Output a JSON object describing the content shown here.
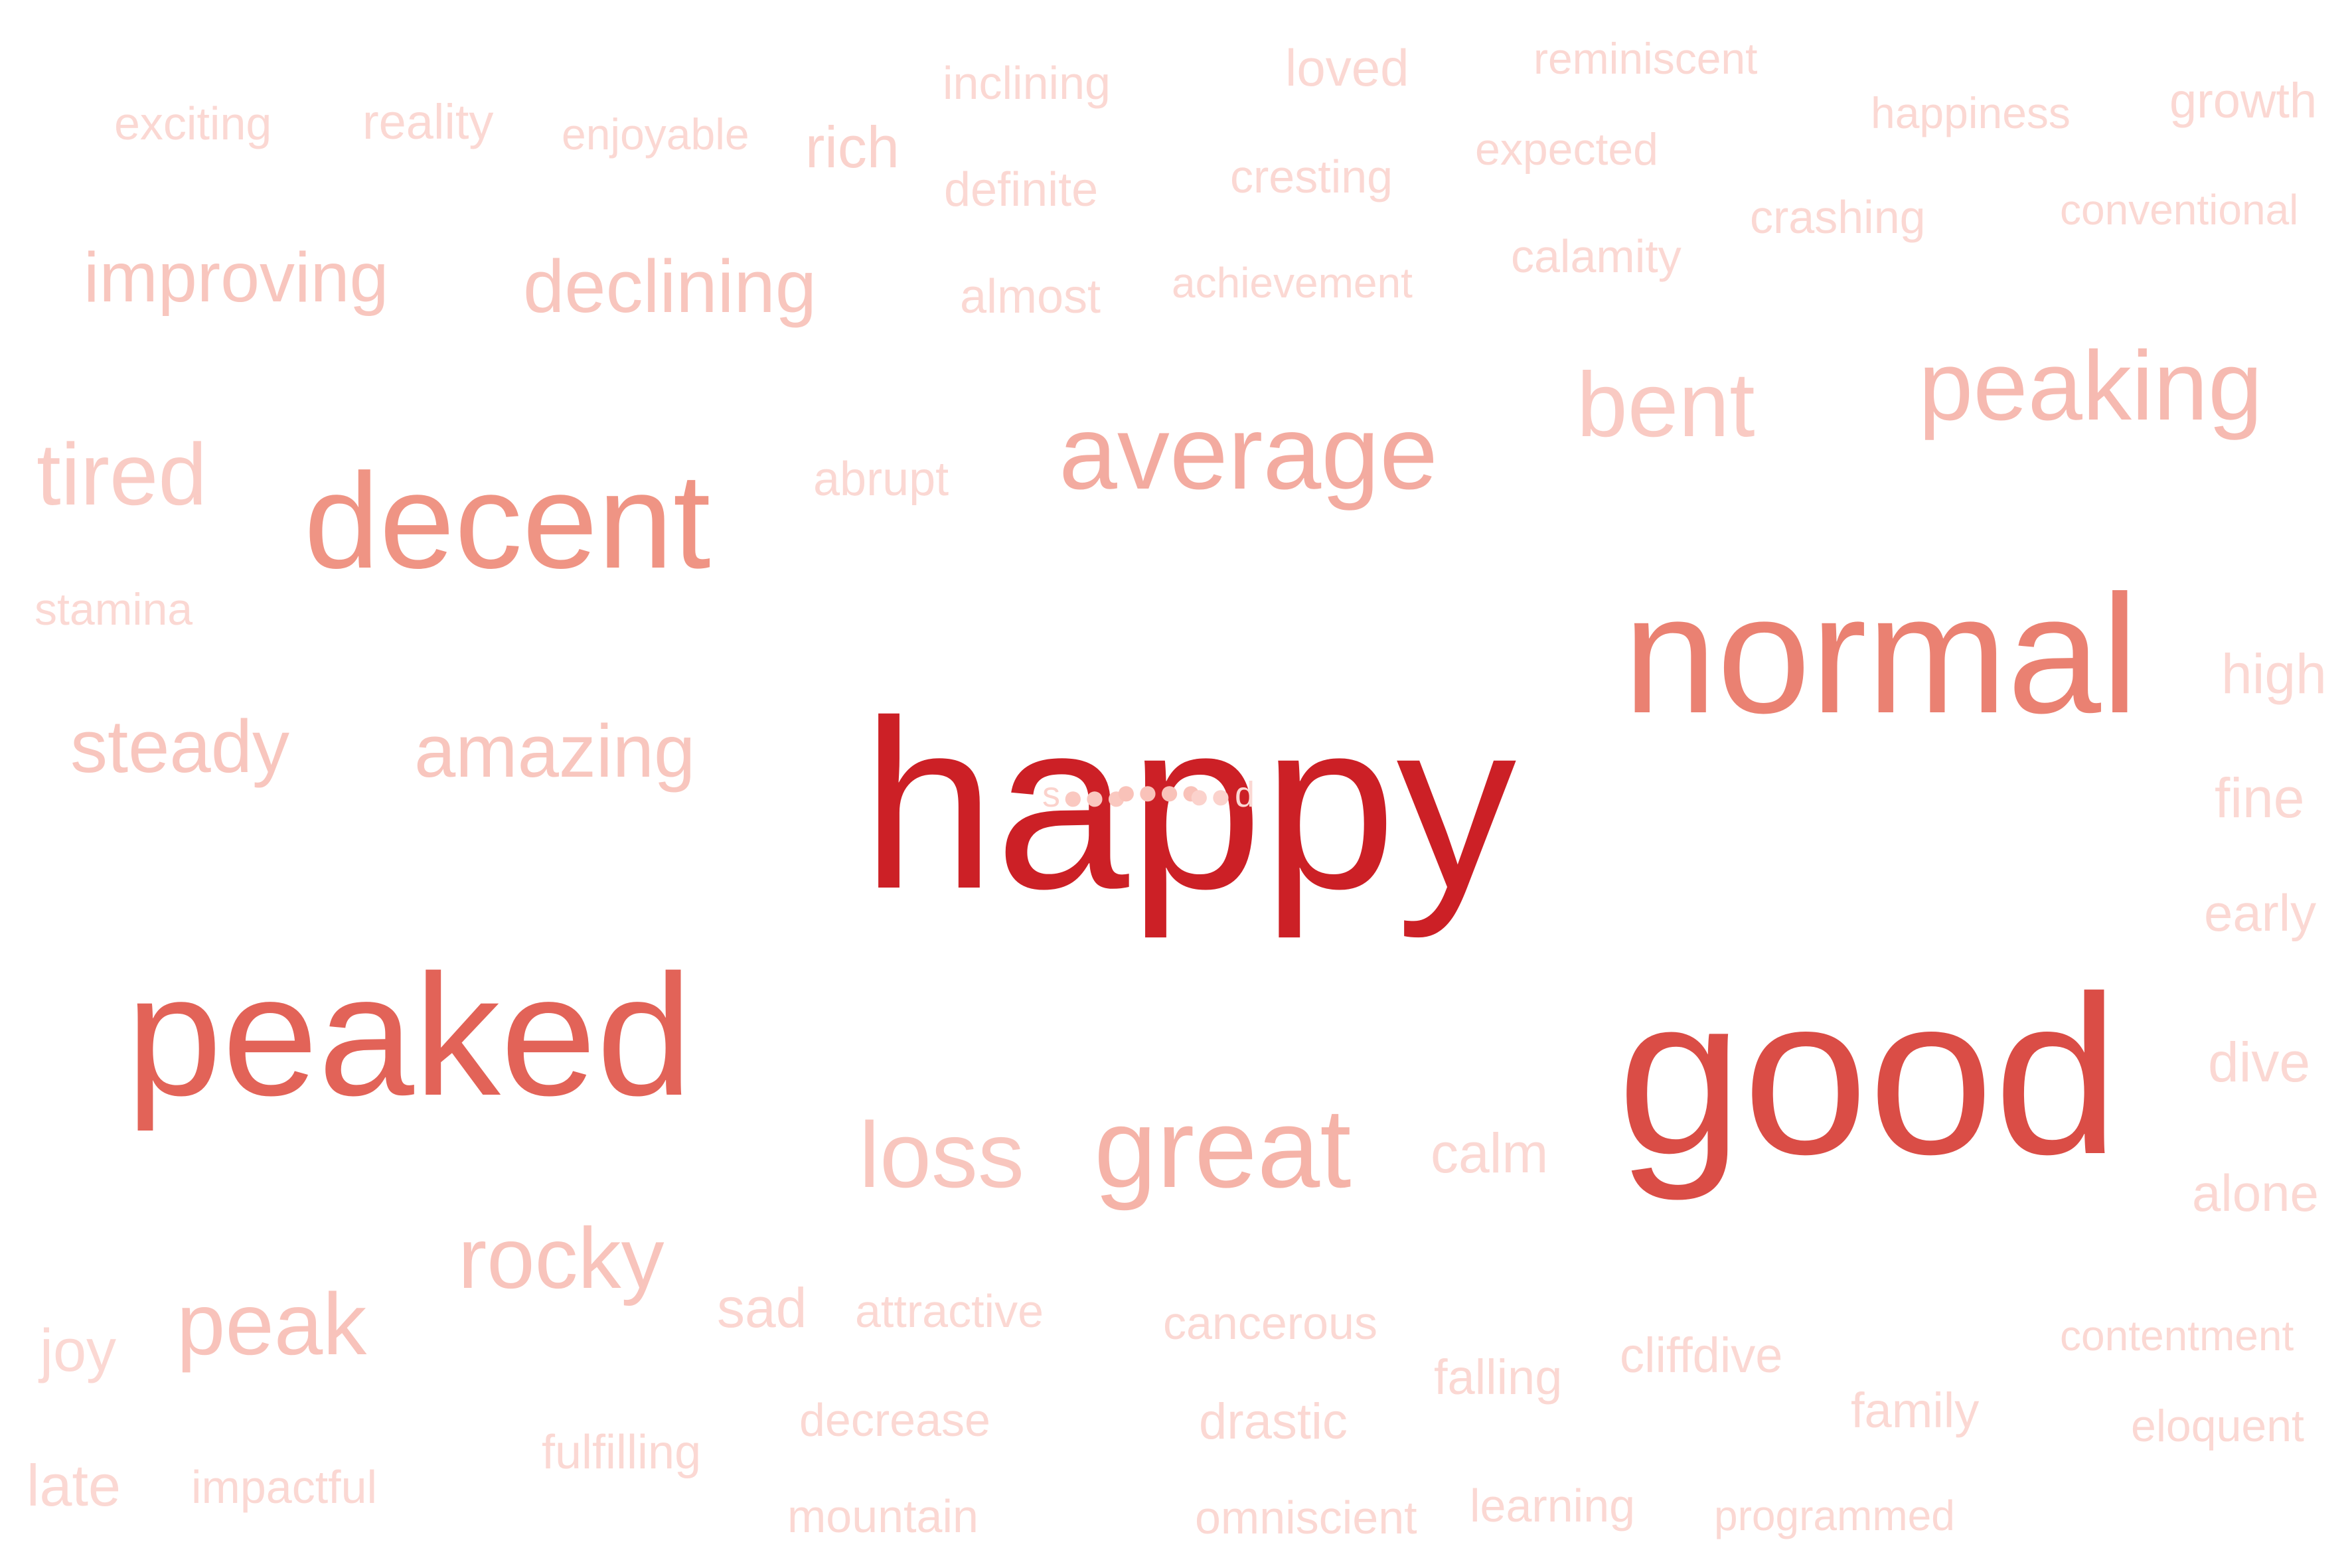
{
  "words": [
    {
      "text": "happy",
      "color": "#cc2026"
    },
    {
      "text": "good",
      "color": "#da4d46"
    },
    {
      "text": "peaked",
      "color": "#e26358"
    },
    {
      "text": "normal",
      "color": "#ea8172"
    },
    {
      "text": "decent",
      "color": "#ef9484"
    },
    {
      "text": "average",
      "color": "#f3aba0"
    },
    {
      "text": "great",
      "color": "#f5b3a8"
    },
    {
      "text": "peaking",
      "color": "#f6bab1"
    },
    {
      "text": "loss",
      "color": "#f8c6be"
    },
    {
      "text": "rocky",
      "color": "#f8c4bc"
    },
    {
      "text": "peak",
      "color": "#f8c3bb"
    },
    {
      "text": "bent",
      "color": "#f9cac3"
    },
    {
      "text": "tired",
      "color": "#f9ccc5"
    },
    {
      "text": "steady",
      "color": "#f8c6be"
    },
    {
      "text": "amazing",
      "color": "#f8c6be"
    },
    {
      "text": "declining",
      "color": "#f8c6be"
    },
    {
      "text": "improving",
      "color": "#f8c6be"
    },
    {
      "text": "rich",
      "color": "#fad2cc"
    },
    {
      "text": "sad",
      "color": "#fbd6d1"
    },
    {
      "text": "calm",
      "color": "#fbd8d3"
    },
    {
      "text": "high",
      "color": "#fbd8d3"
    },
    {
      "text": "fine",
      "color": "#fbd8d3"
    },
    {
      "text": "early",
      "color": "#fbd8d3"
    },
    {
      "text": "dive",
      "color": "#fbd8d3"
    },
    {
      "text": "alone",
      "color": "#fbd8d3"
    },
    {
      "text": "joy",
      "color": "#fbd8d3"
    },
    {
      "text": "late",
      "color": "#fbd8d3"
    },
    {
      "text": "loved",
      "color": "#fbd8d3"
    },
    {
      "text": "growth",
      "color": "#fbd8d3"
    },
    {
      "text": "reality",
      "color": "#fbd8d3"
    },
    {
      "text": "exciting",
      "color": "#fbd8d3"
    },
    {
      "text": "enjoyable",
      "color": "#fbd8d3"
    },
    {
      "text": "inclining",
      "color": "#fbd8d3"
    },
    {
      "text": "definite",
      "color": "#fbd8d3"
    },
    {
      "text": "reminiscent",
      "color": "#fbd8d3"
    },
    {
      "text": "happiness",
      "color": "#fbd8d3"
    },
    {
      "text": "expected",
      "color": "#fbd8d3"
    },
    {
      "text": "cresting",
      "color": "#fbd8d3"
    },
    {
      "text": "crashing",
      "color": "#fbd8d3"
    },
    {
      "text": "conventional",
      "color": "#fbd8d3"
    },
    {
      "text": "calamity",
      "color": "#fbd8d3"
    },
    {
      "text": "almost",
      "color": "#fbd8d3"
    },
    {
      "text": "achievement",
      "color": "#fbd8d3"
    },
    {
      "text": "abrupt",
      "color": "#fbd8d3"
    },
    {
      "text": "stamina",
      "color": "#fbd8d3"
    },
    {
      "text": "attractive",
      "color": "#fbd8d3"
    },
    {
      "text": "cancerous",
      "color": "#fbd8d3"
    },
    {
      "text": "falling",
      "color": "#fbd8d3"
    },
    {
      "text": "cliffdive",
      "color": "#fbd8d3"
    },
    {
      "text": "contentment",
      "color": "#fbd8d3"
    },
    {
      "text": "family",
      "color": "#fbd8d3"
    },
    {
      "text": "eloquent",
      "color": "#fbd8d3"
    },
    {
      "text": "decrease",
      "color": "#fbd8d3"
    },
    {
      "text": "drastic",
      "color": "#fbd8d3"
    },
    {
      "text": "fulfilling",
      "color": "#fbd8d3"
    },
    {
      "text": "impactful",
      "color": "#fbd8d3"
    },
    {
      "text": "mountain",
      "color": "#fbd8d3"
    },
    {
      "text": "omniscient",
      "color": "#fbd8d3"
    },
    {
      "text": "learning",
      "color": "#fbd8d3"
    },
    {
      "text": "programmed",
      "color": "#fbd8d3"
    }
  ]
}
